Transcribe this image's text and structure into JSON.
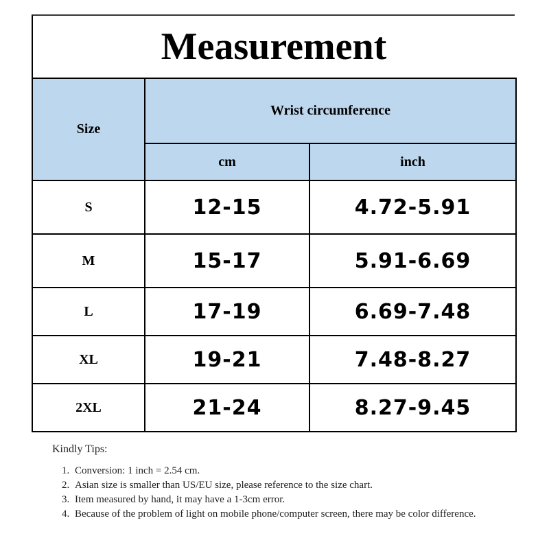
{
  "title": "Measurement",
  "table": {
    "size_header": "Size",
    "group_header": "Wrist circumference",
    "unit_headers": [
      "cm",
      "inch"
    ],
    "rows": [
      {
        "size": "S",
        "cm": "12-15",
        "inch": "4.72-5.91"
      },
      {
        "size": "M",
        "cm": "15-17",
        "inch": "5.91-6.69"
      },
      {
        "size": "L",
        "cm": "17-19",
        "inch": "6.69-7.48"
      },
      {
        "size": "XL",
        "cm": "19-21",
        "inch": "7.48-8.27"
      },
      {
        "size": "2XL",
        "cm": "21-24",
        "inch": "8.27-9.45"
      }
    ],
    "header_color": "#bdd7ee"
  },
  "tips": {
    "heading": "Kindly Tips:",
    "items": [
      "Conversion: 1 inch = 2.54 cm.",
      "Asian size is smaller than US/EU size, please reference to the size chart.",
      "Item measured by hand, it may have a 1-3cm error.",
      "Because of the problem of light on mobile phone/computer screen, there may be color difference."
    ]
  }
}
